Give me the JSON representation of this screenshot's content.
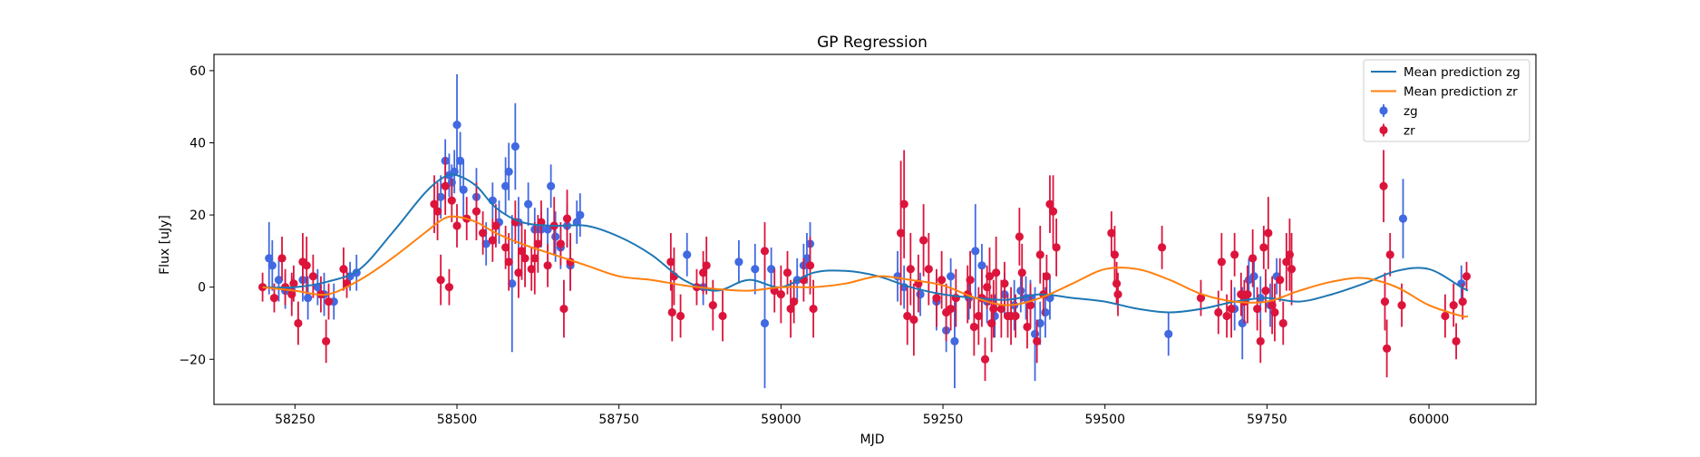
{
  "chart_data": {
    "type": "scatter",
    "title": "GP Regression",
    "xlabel": "MJD",
    "ylabel": "Flux [uJy]",
    "xlim": [
      58125,
      60165
    ],
    "ylim": [
      -32.5,
      64.5
    ],
    "xticks": [
      58250,
      58500,
      58750,
      59000,
      59250,
      59500,
      59750,
      60000
    ],
    "yticks": [
      -20,
      0,
      20,
      40,
      60
    ],
    "grid": false,
    "legend_position": "top-right",
    "colors": {
      "zg_line": "#1f77b4",
      "zr_line": "#ff7f0e",
      "zg_points": "#4169e1",
      "zr_points": "#dc143c"
    },
    "lines": [
      {
        "name": "Mean prediction zg",
        "color": "#1f77b4",
        "x": [
          58200,
          58250,
          58300,
          58350,
          58400,
          58450,
          58480,
          58500,
          58530,
          58560,
          58600,
          58650,
          58700,
          58750,
          58800,
          58850,
          58900,
          58950,
          59000,
          59050,
          59100,
          59150,
          59200,
          59250,
          59300,
          59350,
          59400,
          59450,
          59500,
          59550,
          59600,
          59650,
          59700,
          59750,
          59800,
          59850,
          59900,
          59950,
          60000,
          60050,
          60060
        ],
        "y": [
          0,
          0,
          1.5,
          5,
          15,
          26,
          30.5,
          31,
          28,
          22,
          18,
          17,
          17,
          14,
          9,
          2,
          -1,
          2,
          0,
          4,
          4.5,
          3,
          0,
          -2,
          -3,
          -3.5,
          -2,
          -3,
          -4,
          -6,
          -7,
          -6,
          -4,
          -3,
          -4,
          -2,
          1,
          4.5,
          5,
          0,
          -1
        ]
      },
      {
        "name": "Mean prediction zr",
        "color": "#ff7f0e",
        "x": [
          58200,
          58250,
          58300,
          58350,
          58400,
          58450,
          58480,
          58500,
          58530,
          58560,
          58600,
          58650,
          58700,
          58750,
          58800,
          58850,
          58900,
          58950,
          59000,
          59050,
          59100,
          59150,
          59200,
          59250,
          59300,
          59350,
          59400,
          59450,
          59500,
          59550,
          59600,
          59650,
          59700,
          59750,
          59800,
          59850,
          59900,
          59950,
          60000,
          60050,
          60060
        ],
        "y": [
          0,
          -1,
          -2,
          2,
          8,
          15,
          19,
          19.5,
          18,
          15,
          12,
          9,
          6,
          3,
          2,
          0.5,
          -0.5,
          -1,
          0,
          0,
          1,
          3,
          2,
          0.5,
          -3,
          -5,
          -3,
          1,
          5,
          5,
          2,
          -2,
          -4,
          -4,
          -1,
          1.5,
          2.5,
          0,
          -5,
          -8,
          -8
        ]
      }
    ],
    "series": [
      {
        "name": "zg",
        "color": "#4169e1",
        "points": [
          [
            58210,
            8,
            10
          ],
          [
            58215,
            6,
            7
          ],
          [
            58225,
            2,
            6
          ],
          [
            58235,
            -1,
            5
          ],
          [
            58245,
            -1,
            4
          ],
          [
            58262,
            2,
            6
          ],
          [
            58270,
            -3,
            6
          ],
          [
            58285,
            0,
            5
          ],
          [
            58295,
            -2,
            6
          ],
          [
            58310,
            -4,
            5
          ],
          [
            58335,
            3,
            4
          ],
          [
            58345,
            4,
            5
          ],
          [
            58475,
            25,
            6
          ],
          [
            58482,
            35,
            6
          ],
          [
            58488,
            31,
            6
          ],
          [
            58492,
            29,
            5
          ],
          [
            58496,
            32,
            6
          ],
          [
            58500,
            45,
            14
          ],
          [
            58505,
            35,
            8
          ],
          [
            58510,
            27,
            8
          ],
          [
            58530,
            25,
            8
          ],
          [
            58545,
            12,
            6
          ],
          [
            58555,
            24,
            5
          ],
          [
            58565,
            18,
            6
          ],
          [
            58575,
            28,
            8
          ],
          [
            58580,
            32,
            8
          ],
          [
            58585,
            1,
            19
          ],
          [
            58590,
            39,
            12
          ],
          [
            58595,
            18,
            7
          ],
          [
            58610,
            23,
            6
          ],
          [
            58620,
            16,
            6
          ],
          [
            58630,
            16,
            5
          ],
          [
            58640,
            16,
            6
          ],
          [
            58645,
            28,
            6
          ],
          [
            58652,
            14,
            7
          ],
          [
            58660,
            11,
            6
          ],
          [
            58670,
            17,
            6
          ],
          [
            58675,
            6,
            7
          ],
          [
            58685,
            18,
            6
          ],
          [
            58690,
            20,
            6
          ],
          [
            58855,
            9,
            6
          ],
          [
            58880,
            0,
            5
          ],
          [
            58935,
            7,
            6
          ],
          [
            58960,
            5,
            7
          ],
          [
            58975,
            -10,
            18
          ],
          [
            58985,
            5,
            6
          ],
          [
            59025,
            2,
            6
          ],
          [
            59035,
            6,
            6
          ],
          [
            59040,
            8,
            7
          ],
          [
            59045,
            12,
            6
          ],
          [
            59180,
            3,
            7
          ],
          [
            59190,
            0,
            6
          ],
          [
            59215,
            -2,
            6
          ],
          [
            59240,
            -4,
            8
          ],
          [
            59255,
            -12,
            6
          ],
          [
            59262,
            3,
            5
          ],
          [
            59268,
            -15,
            13
          ],
          [
            59290,
            -3,
            6
          ],
          [
            59300,
            10,
            13
          ],
          [
            59310,
            6,
            6
          ],
          [
            59318,
            -4,
            6
          ],
          [
            59330,
            -8,
            6
          ],
          [
            59345,
            -2,
            6
          ],
          [
            59360,
            -5,
            7
          ],
          [
            59370,
            -1,
            6
          ],
          [
            59378,
            -3,
            6
          ],
          [
            59385,
            -3,
            5
          ],
          [
            59392,
            -13,
            13
          ],
          [
            59400,
            -10,
            6
          ],
          [
            59408,
            -7,
            7
          ],
          [
            59415,
            -3,
            6
          ],
          [
            59598,
            -13,
            6
          ],
          [
            59700,
            -6,
            6
          ],
          [
            59712,
            -10,
            10
          ],
          [
            59722,
            2,
            6
          ],
          [
            59730,
            3,
            6
          ],
          [
            59740,
            -3,
            6
          ],
          [
            59755,
            -5,
            6
          ],
          [
            59765,
            3,
            5
          ],
          [
            59960,
            19,
            11
          ],
          [
            60050,
            1,
            5
          ]
        ]
      },
      {
        "name": "zr",
        "color": "#dc143c",
        "points": [
          [
            58200,
            0,
            4
          ],
          [
            58218,
            -3,
            4
          ],
          [
            58230,
            8,
            6
          ],
          [
            58235,
            0,
            5
          ],
          [
            58245,
            -2,
            6
          ],
          [
            58248,
            1,
            5
          ],
          [
            58255,
            -10,
            6
          ],
          [
            58262,
            7,
            8
          ],
          [
            58268,
            6,
            8
          ],
          [
            58278,
            3,
            6
          ],
          [
            58290,
            -2,
            5
          ],
          [
            58298,
            -15,
            6
          ],
          [
            58302,
            -4,
            5
          ],
          [
            58325,
            5,
            6
          ],
          [
            58330,
            1,
            4
          ],
          [
            58465,
            23,
            8
          ],
          [
            58470,
            21,
            8
          ],
          [
            58475,
            2,
            7
          ],
          [
            58482,
            28,
            8
          ],
          [
            58488,
            0,
            5
          ],
          [
            58492,
            24,
            6
          ],
          [
            58500,
            17,
            6
          ],
          [
            58515,
            19,
            6
          ],
          [
            58530,
            21,
            8
          ],
          [
            58540,
            15,
            6
          ],
          [
            58555,
            13,
            6
          ],
          [
            58560,
            17,
            6
          ],
          [
            58575,
            11,
            6
          ],
          [
            58580,
            7,
            8
          ],
          [
            58590,
            18,
            6
          ],
          [
            58595,
            4,
            7
          ],
          [
            58600,
            10,
            8
          ],
          [
            58605,
            8,
            8
          ],
          [
            58615,
            5,
            6
          ],
          [
            58620,
            8,
            10
          ],
          [
            58625,
            12,
            8
          ],
          [
            58630,
            18,
            6
          ],
          [
            58640,
            6,
            6
          ],
          [
            58650,
            17,
            8
          ],
          [
            58660,
            12,
            6
          ],
          [
            58665,
            -6,
            8
          ],
          [
            58670,
            19,
            8
          ],
          [
            58675,
            7,
            8
          ],
          [
            58830,
            7,
            8
          ],
          [
            58832,
            -7,
            8
          ],
          [
            58835,
            3,
            8
          ],
          [
            58845,
            -8,
            6
          ],
          [
            58870,
            0,
            5
          ],
          [
            58880,
            4,
            6
          ],
          [
            58885,
            6,
            8
          ],
          [
            58895,
            -5,
            7
          ],
          [
            58910,
            -8,
            7
          ],
          [
            58975,
            10,
            8
          ],
          [
            58990,
            -1,
            6
          ],
          [
            59000,
            -2,
            8
          ],
          [
            59010,
            4,
            6
          ],
          [
            59015,
            -6,
            8
          ],
          [
            59020,
            -4,
            6
          ],
          [
            59035,
            2,
            6
          ],
          [
            59045,
            6,
            8
          ],
          [
            59050,
            -6,
            8
          ],
          [
            59185,
            15,
            20
          ],
          [
            59190,
            23,
            15
          ],
          [
            59195,
            -8,
            8
          ],
          [
            59200,
            5,
            10
          ],
          [
            59205,
            -9,
            10
          ],
          [
            59212,
            1,
            8
          ],
          [
            59220,
            13,
            10
          ],
          [
            59228,
            5,
            10
          ],
          [
            59240,
            -3,
            8
          ],
          [
            59248,
            2,
            8
          ],
          [
            59255,
            -7,
            8
          ],
          [
            59262,
            -6,
            6
          ],
          [
            59270,
            -3,
            8
          ],
          [
            59288,
            -2,
            8
          ],
          [
            59292,
            2,
            8
          ],
          [
            59298,
            -11,
            8
          ],
          [
            59305,
            -8,
            8
          ],
          [
            59310,
            -3,
            8
          ],
          [
            59315,
            -20,
            6
          ],
          [
            59318,
            0,
            6
          ],
          [
            59322,
            3,
            8
          ],
          [
            59325,
            -10,
            8
          ],
          [
            59328,
            -6,
            8
          ],
          [
            59332,
            4,
            10
          ],
          [
            59340,
            -6,
            8
          ],
          [
            59345,
            1,
            6
          ],
          [
            59350,
            -8,
            6
          ],
          [
            59355,
            -8,
            8
          ],
          [
            59362,
            -8,
            6
          ],
          [
            59368,
            14,
            8
          ],
          [
            59372,
            4,
            8
          ],
          [
            59380,
            -11,
            6
          ],
          [
            59385,
            -5,
            6
          ],
          [
            59395,
            -15,
            6
          ],
          [
            59400,
            9,
            8
          ],
          [
            59405,
            -2,
            6
          ],
          [
            59410,
            3,
            6
          ],
          [
            59415,
            23,
            8
          ],
          [
            59420,
            21,
            10
          ],
          [
            59425,
            11,
            8
          ],
          [
            59510,
            15,
            6
          ],
          [
            59515,
            9,
            8
          ],
          [
            59518,
            1,
            6
          ],
          [
            59520,
            -2,
            6
          ],
          [
            59588,
            11,
            6
          ],
          [
            59648,
            -3,
            5
          ],
          [
            59675,
            -7,
            6
          ],
          [
            59680,
            7,
            8
          ],
          [
            59688,
            -8,
            6
          ],
          [
            59695,
            -6,
            8
          ],
          [
            59700,
            9,
            6
          ],
          [
            59710,
            -2,
            6
          ],
          [
            59715,
            -4,
            6
          ],
          [
            59720,
            -2,
            8
          ],
          [
            59728,
            8,
            8
          ],
          [
            59735,
            -6,
            6
          ],
          [
            59740,
            -15,
            6
          ],
          [
            59745,
            11,
            6
          ],
          [
            59748,
            -1,
            6
          ],
          [
            59752,
            15,
            10
          ],
          [
            59758,
            -5,
            8
          ],
          [
            59762,
            -7,
            8
          ],
          [
            59770,
            2,
            6
          ],
          [
            59775,
            -10,
            6
          ],
          [
            59780,
            7,
            8
          ],
          [
            59785,
            9,
            10
          ],
          [
            59788,
            5,
            10
          ],
          [
            59930,
            28,
            10
          ],
          [
            59932,
            -4,
            8
          ],
          [
            59935,
            -17,
            8
          ],
          [
            59940,
            9,
            6
          ],
          [
            59958,
            -5,
            6
          ],
          [
            60025,
            -8,
            6
          ],
          [
            60038,
            -5,
            6
          ],
          [
            60042,
            -15,
            5
          ],
          [
            60052,
            -4,
            5
          ],
          [
            60058,
            3,
            4
          ]
        ]
      }
    ]
  }
}
